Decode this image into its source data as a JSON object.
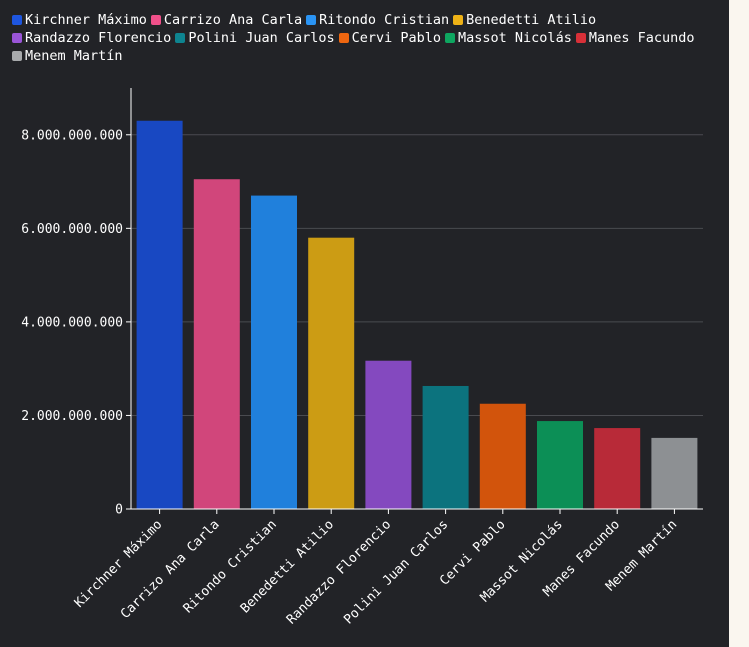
{
  "chart_data": {
    "type": "bar",
    "title": "",
    "xlabel": "",
    "ylabel": "",
    "ylim": [
      0,
      9000000000
    ],
    "yticks": [
      0,
      2000000000,
      4000000000,
      6000000000,
      8000000000
    ],
    "ytick_labels": [
      "0",
      "2.000.000.000",
      "4.000.000.000",
      "6.000.000.000",
      "8.000.000.000"
    ],
    "categories": [
      "Kirchner Máximo",
      "Carrizo Ana Carla",
      "Ritondo Cristian",
      "Benedetti Atilio",
      "Randazzo Florencio",
      "Polini Juan Carlos",
      "Cervi Pablo",
      "Massot Nicolás",
      "Manes Facundo",
      "Menem Martín"
    ],
    "values": [
      8300000000,
      7050000000,
      6700000000,
      5800000000,
      3170000000,
      2630000000,
      2250000000,
      1880000000,
      1730000000,
      1520000000
    ],
    "legend": {
      "position": "top-left",
      "entries": [
        "Kirchner Máximo",
        "Carrizo Ana Carla",
        "Ritondo Cristian",
        "Benedetti Atilio",
        "Randazzo Florencio",
        "Polini Juan Carlos",
        "Cervi Pablo",
        "Massot Nicolás",
        "Manes Facundo",
        "Menem Martín"
      ]
    },
    "grid": true
  },
  "colors": {
    "bars": [
      "#1848c2",
      "#d1467b",
      "#2080dc",
      "#cc9c14",
      "#8449bf",
      "#0c737e",
      "#d2540c",
      "#0c8f56",
      "#b82a38",
      "#8d9093"
    ],
    "swatches": [
      "#1e56e0",
      "#f0508a",
      "#2a94f4",
      "#eeb216",
      "#9a55d8",
      "#0e8490",
      "#ee6610",
      "#0ea660",
      "#d83038",
      "#a8aaac"
    ],
    "background": "#222327",
    "grid": "#4a4b50",
    "axis": "#ffffff",
    "text": "#ffffff"
  }
}
